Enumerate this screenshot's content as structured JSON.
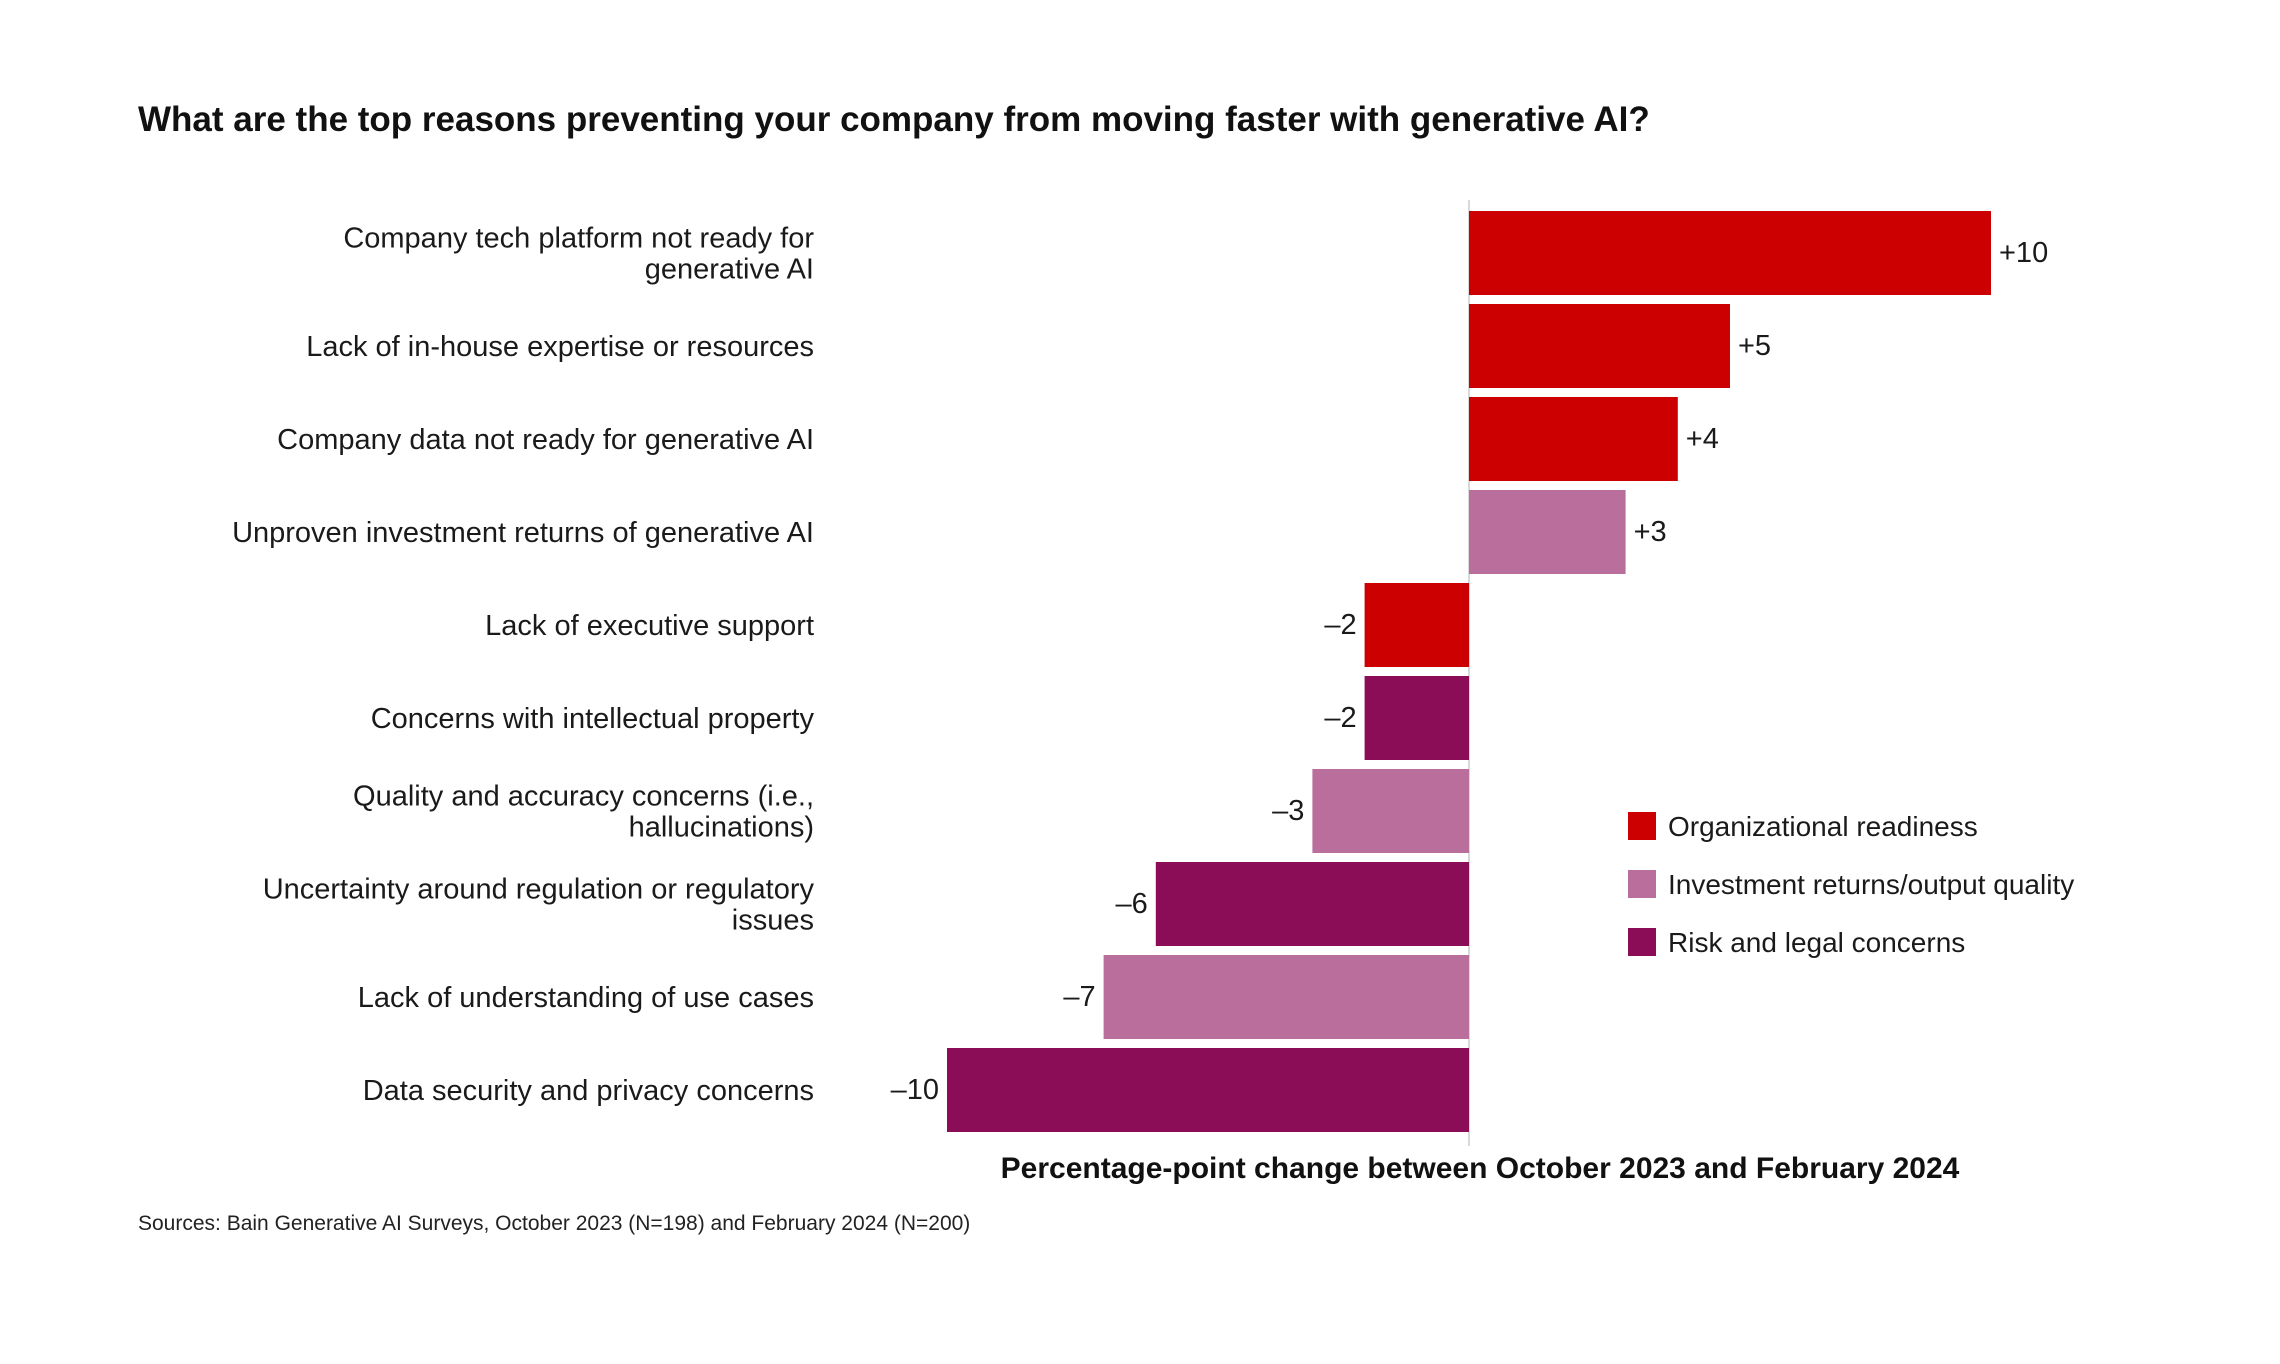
{
  "chart_data": {
    "type": "bar",
    "orientation": "horizontal",
    "title": "What are the top reasons preventing your company from moving faster with generative AI?",
    "xlabel": "Percentage-point change between October 2023 and February 2024",
    "xlim": [
      -10,
      10
    ],
    "grid": false,
    "legend_position": "right",
    "categories": [
      [
        "Company tech platform not ready for",
        "generative AI"
      ],
      [
        "Lack of in-house expertise or resources"
      ],
      [
        "Company data not ready for generative AI"
      ],
      [
        "Unproven investment returns of generative AI"
      ],
      [
        "Lack of executive support"
      ],
      [
        "Concerns with intellectual property"
      ],
      [
        "Quality and accuracy concerns (i.e.,",
        "hallucinations)"
      ],
      [
        "Uncertainty around regulation or regulatory",
        "issues"
      ],
      [
        "Lack of understanding of use cases"
      ],
      [
        "Data security and privacy concerns"
      ]
    ],
    "values": [
      10,
      5,
      4,
      3,
      -2,
      -2,
      -3,
      -6,
      -7,
      -10
    ],
    "value_labels": [
      "+10",
      "+5",
      "+4",
      "+3",
      "–2",
      "–2",
      "–3",
      "–6",
      "–7",
      "–10"
    ],
    "groups": [
      "org",
      "org",
      "org",
      "inv",
      "org",
      "risk",
      "inv",
      "risk",
      "inv",
      "risk"
    ],
    "legend": [
      {
        "key": "org",
        "label": "Organizational readiness",
        "color": "#CC0000"
      },
      {
        "key": "inv",
        "label": "Investment returns/output quality",
        "color": "#B96E9B"
      },
      {
        "key": "risk",
        "label": "Risk and legal concerns",
        "color": "#8B0C57"
      }
    ],
    "axis_line_color": "#d9d9d9"
  },
  "footer": {
    "source": "Sources: Bain Generative AI Surveys, October 2023 (N=198) and February 2024 (N=200)"
  }
}
